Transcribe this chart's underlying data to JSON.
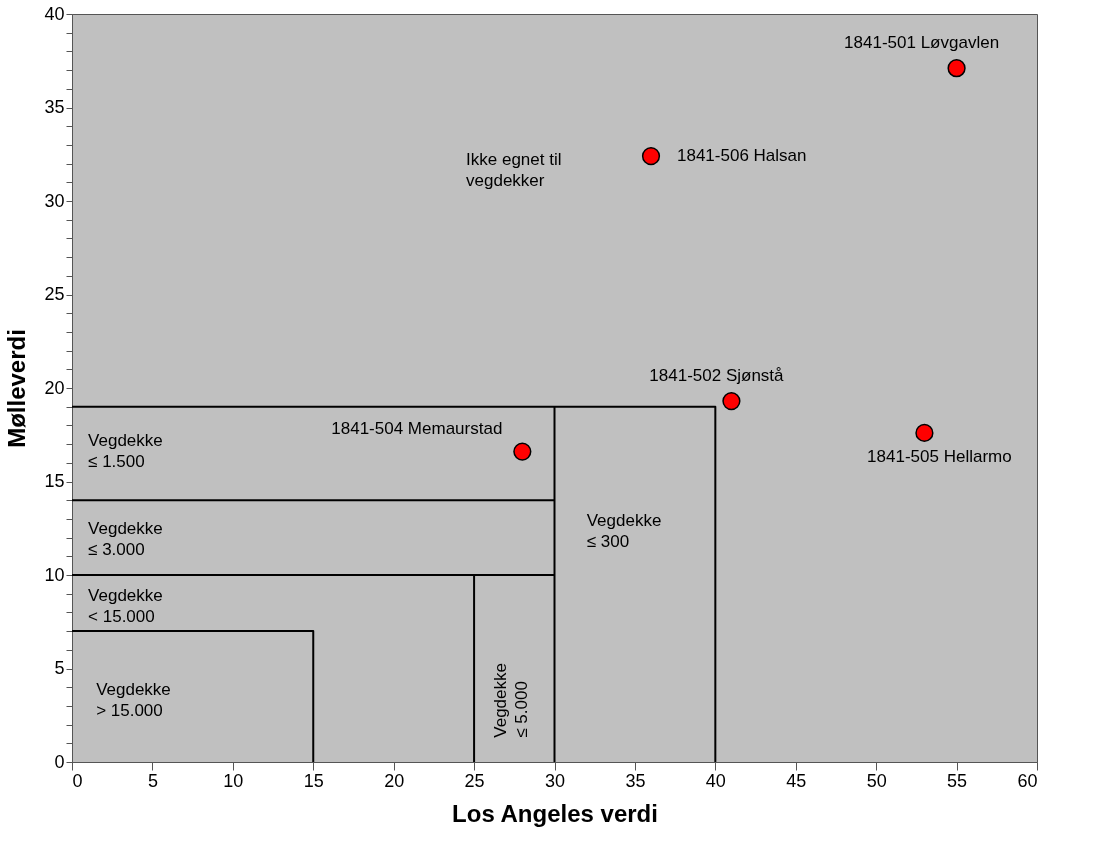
{
  "chart_data": {
    "type": "scatter",
    "xlabel": "Los Angeles verdi",
    "ylabel": "Mølleverdi",
    "xlim": [
      0,
      60
    ],
    "ylim": [
      0,
      40
    ],
    "xticks": [
      0,
      5,
      10,
      15,
      20,
      25,
      30,
      35,
      40,
      45,
      50,
      55,
      60
    ],
    "yticks": [
      0,
      {
        "value": 1,
        "label": null
      },
      {
        "value": 2,
        "label": null
      },
      {
        "value": 3,
        "label": null
      },
      {
        "value": 4,
        "label": null
      },
      5,
      {
        "value": 6,
        "label": null
      },
      {
        "value": 7,
        "label": null
      },
      {
        "value": 8,
        "label": null
      },
      {
        "value": 9,
        "label": null
      },
      10,
      {
        "value": 11,
        "label": null
      },
      {
        "value": 12,
        "label": null
      },
      {
        "value": 13,
        "label": null
      },
      {
        "value": 14,
        "label": null
      },
      15,
      {
        "value": 16,
        "label": null
      },
      {
        "value": 17,
        "label": null
      },
      {
        "value": 18,
        "label": null
      },
      {
        "value": 19,
        "label": null
      },
      20,
      {
        "value": 21,
        "label": null
      },
      {
        "value": 22,
        "label": null
      },
      {
        "value": 23,
        "label": null
      },
      {
        "value": 24,
        "label": null
      },
      25,
      {
        "value": 26,
        "label": null
      },
      {
        "value": 27,
        "label": null
      },
      {
        "value": 28,
        "label": null
      },
      {
        "value": 29,
        "label": null
      },
      30,
      {
        "value": 31,
        "label": null
      },
      {
        "value": 32,
        "label": null
      },
      {
        "value": 33,
        "label": null
      },
      {
        "value": 34,
        "label": null
      },
      35,
      {
        "value": 36,
        "label": null
      },
      {
        "value": 37,
        "label": null
      },
      {
        "value": 38,
        "label": null
      },
      {
        "value": 39,
        "label": null
      },
      40
    ],
    "grid": false,
    "series": [
      {
        "color": "#ff0000",
        "marker": "circle",
        "x": [
          55,
          36,
          41,
          53,
          28
        ],
        "values": [
          37.1,
          32.4,
          19.3,
          17.6,
          16.6
        ]
      },
      {
        "type": "line",
        "color": "#000000",
        "marker": "none",
        "x": [
          0,
          40,
          40
        ],
        "values": [
          19,
          19,
          0
        ]
      },
      {
        "type": "line",
        "color": "#000000",
        "marker": "none",
        "x": [
          30,
          30
        ],
        "values": [
          0,
          19
        ]
      },
      {
        "type": "line",
        "color": "#000000",
        "marker": "none",
        "x": [
          0,
          30
        ],
        "values": [
          14,
          14
        ]
      },
      {
        "type": "line",
        "color": "#000000",
        "marker": "none",
        "x": [
          0,
          30
        ],
        "values": [
          10,
          10
        ]
      },
      {
        "type": "line",
        "color": "#000000",
        "marker": "none",
        "x": [
          25,
          25
        ],
        "values": [
          0,
          10
        ]
      },
      {
        "type": "line",
        "color": "#000000",
        "marker": "none",
        "x": [
          0,
          15,
          15
        ],
        "values": [
          7,
          7,
          0
        ]
      }
    ],
    "annotations": [
      {
        "text": "1841-501 Løvgavlen",
        "x": 55,
        "y": 37.1
      },
      {
        "text": "1841-506 Halsan",
        "x": 36,
        "y": 32.4
      },
      {
        "text": "1841-502 Sjønstå",
        "x": 41,
        "y": 19.3
      },
      {
        "text": "1841-505 Hellarmo",
        "x": 53,
        "y": 17.6
      },
      {
        "text": "1841-504 Memaurstad",
        "x": 28,
        "y": 16.6
      },
      "Ikke egnet til\nvegdekker",
      "Vegdekke\n≤ 1.500",
      "Vegdekke\n≤ 3.000",
      "Vegdekke\n< 15.000",
      "Vegdekke\n> 15.000",
      "Vegdekke\n≤ 300",
      "Vegdekke\n≤ 5.000"
    ]
  }
}
